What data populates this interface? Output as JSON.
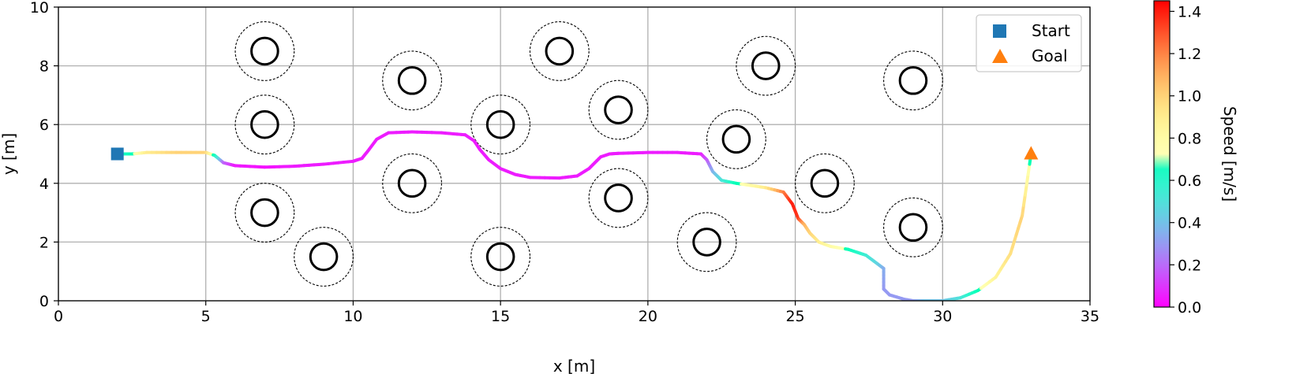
{
  "chart_data": {
    "type": "scatter",
    "xlabel": "x [m]",
    "ylabel": "y [m]",
    "xlim": [
      0,
      35
    ],
    "ylim": [
      0,
      10
    ],
    "xticks": [
      0,
      5,
      10,
      15,
      20,
      25,
      30,
      35
    ],
    "yticks": [
      0,
      2,
      4,
      6,
      8,
      10
    ],
    "grid": true,
    "legend": {
      "position": "top-right",
      "entries": [
        {
          "label": "Start",
          "marker": "square",
          "color": "#1f77b4"
        },
        {
          "label": "Goal",
          "marker": "triangle",
          "color": "#ff7f0e"
        }
      ]
    },
    "start": {
      "x": 2,
      "y": 5
    },
    "goal": {
      "x": 33,
      "y": 5
    },
    "obstacles": [
      {
        "x": 7,
        "y": 8.5
      },
      {
        "x": 7,
        "y": 6
      },
      {
        "x": 7,
        "y": 3
      },
      {
        "x": 9,
        "y": 1.5
      },
      {
        "x": 12,
        "y": 7.5
      },
      {
        "x": 12,
        "y": 4
      },
      {
        "x": 15,
        "y": 6
      },
      {
        "x": 15,
        "y": 1.5
      },
      {
        "x": 17,
        "y": 8.5
      },
      {
        "x": 19,
        "y": 6.5
      },
      {
        "x": 19,
        "y": 3.5
      },
      {
        "x": 22,
        "y": 2
      },
      {
        "x": 23,
        "y": 5.5
      },
      {
        "x": 24,
        "y": 8
      },
      {
        "x": 26,
        "y": 4
      },
      {
        "x": 29,
        "y": 7.5
      },
      {
        "x": 29,
        "y": 2.5
      }
    ],
    "obstacle_radius": 0.45,
    "safety_radius": 1.0,
    "trajectory": {
      "x": [
        2.0,
        2.5,
        3.0,
        4.0,
        5.0,
        5.3,
        5.6,
        6.0,
        7.0,
        8.0,
        9.0,
        10.0,
        10.3,
        10.5,
        10.8,
        11.2,
        12.0,
        13.0,
        13.8,
        14.1,
        14.3,
        14.6,
        15.0,
        15.5,
        16.0,
        17.0,
        17.6,
        18.0,
        18.4,
        18.7,
        19.0,
        20.0,
        21.0,
        21.8,
        22.0,
        22.2,
        22.5,
        23.0,
        24.0,
        24.6,
        24.9,
        25.1,
        25.3,
        25.5,
        25.8,
        26.2,
        26.8,
        27.4,
        27.8,
        28.0,
        28.0,
        28.2,
        28.7,
        29.0,
        29.4,
        30.0,
        30.6,
        31.2,
        31.8,
        32.3,
        32.7,
        33.0
      ],
      "y": [
        5.0,
        5.0,
        5.05,
        5.05,
        5.05,
        4.95,
        4.7,
        4.6,
        4.55,
        4.58,
        4.65,
        4.75,
        4.85,
        5.1,
        5.5,
        5.72,
        5.75,
        5.72,
        5.65,
        5.45,
        5.15,
        4.8,
        4.5,
        4.3,
        4.2,
        4.18,
        4.25,
        4.5,
        4.9,
        5.0,
        5.02,
        5.05,
        5.05,
        5.0,
        4.8,
        4.4,
        4.1,
        4.0,
        3.85,
        3.7,
        3.3,
        2.8,
        2.6,
        2.3,
        2.0,
        1.85,
        1.75,
        1.55,
        1.25,
        1.1,
        0.4,
        0.2,
        0.05,
        0.0,
        0.0,
        0.0,
        0.1,
        0.35,
        0.8,
        1.6,
        2.9,
        5.0
      ],
      "speed": [
        0.6,
        0.7,
        0.9,
        1.0,
        1.0,
        0.7,
        0.2,
        0.05,
        0.03,
        0.05,
        0.05,
        0.05,
        0.05,
        0.05,
        0.05,
        0.05,
        0.05,
        0.05,
        0.05,
        0.05,
        0.05,
        0.05,
        0.05,
        0.05,
        0.05,
        0.05,
        0.05,
        0.05,
        0.05,
        0.05,
        0.05,
        0.05,
        0.05,
        0.05,
        0.15,
        0.35,
        0.5,
        0.7,
        0.9,
        1.2,
        1.4,
        1.35,
        1.1,
        1.0,
        0.9,
        0.8,
        0.7,
        0.55,
        0.45,
        0.35,
        0.3,
        0.3,
        0.3,
        0.3,
        0.4,
        0.4,
        0.5,
        0.7,
        0.85,
        0.95,
        1.0,
        0.7
      ]
    },
    "colorbar": {
      "label": "Speed [m/s]",
      "min": 0.0,
      "max": 1.45,
      "ticks": [
        0.0,
        0.2,
        0.4,
        0.6,
        0.8,
        1.0,
        1.2,
        1.4
      ],
      "tick_labels": [
        "0.0",
        "0.2",
        "0.4",
        "0.6",
        "0.8",
        "1.0",
        "1.2",
        "1.4"
      ],
      "colormap": "rainbow"
    }
  }
}
